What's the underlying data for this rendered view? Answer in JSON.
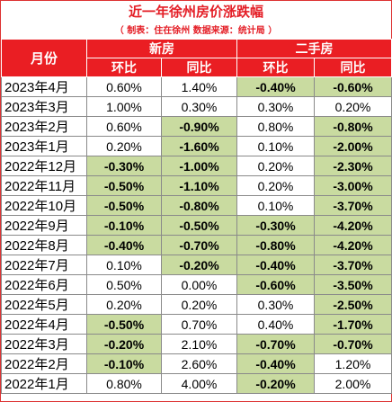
{
  "title": "近一年徐州房价涨跌幅",
  "subtitle": "（ 制表：住在徐州  数据来源：统计局 ）",
  "headers": {
    "month": "月份",
    "new_house": "新房",
    "second_hand": "二手房",
    "mom": "环比",
    "yoy": "同比"
  },
  "colors": {
    "header_bg": "#ea1e23",
    "negative_bg": "#c9dba0",
    "title": "#e41e26"
  },
  "rows": [
    {
      "month": "2023年4月",
      "new_mom": "0.60%",
      "new_yoy": "1.40%",
      "sh_mom": "-0.40%",
      "sh_yoy": "-0.60%"
    },
    {
      "month": "2023年3月",
      "new_mom": "1.00%",
      "new_yoy": "0.30%",
      "sh_mom": "0.30%",
      "sh_yoy": "0.20%"
    },
    {
      "month": "2023年2月",
      "new_mom": "0.60%",
      "new_yoy": "-0.90%",
      "sh_mom": "0.80%",
      "sh_yoy": "-0.80%"
    },
    {
      "month": "2023年1月",
      "new_mom": "0.20%",
      "new_yoy": "-1.60%",
      "sh_mom": "0.10%",
      "sh_yoy": "-2.00%"
    },
    {
      "month": "2022年12月",
      "new_mom": "-0.30%",
      "new_yoy": "-1.00%",
      "sh_mom": "0.20%",
      "sh_yoy": "-2.30%"
    },
    {
      "month": "2022年11月",
      "new_mom": "-0.50%",
      "new_yoy": "-1.10%",
      "sh_mom": "0.20%",
      "sh_yoy": "-3.00%"
    },
    {
      "month": "2022年10月",
      "new_mom": "-0.50%",
      "new_yoy": "-0.80%",
      "sh_mom": "0.10%",
      "sh_yoy": "-3.70%"
    },
    {
      "month": "2022年9月",
      "new_mom": "-0.10%",
      "new_yoy": "-0.50%",
      "sh_mom": "-0.30%",
      "sh_yoy": "-4.20%"
    },
    {
      "month": "2022年8月",
      "new_mom": "-0.40%",
      "new_yoy": "-0.70%",
      "sh_mom": "-0.80%",
      "sh_yoy": "-4.20%"
    },
    {
      "month": "2022年7月",
      "new_mom": "0.10%",
      "new_yoy": "-0.20%",
      "sh_mom": "-0.40%",
      "sh_yoy": "-3.70%"
    },
    {
      "month": "2022年6月",
      "new_mom": "0.50%",
      "new_yoy": "0.00%",
      "sh_mom": "-0.60%",
      "sh_yoy": "-3.50%"
    },
    {
      "month": "2022年5月",
      "new_mom": "0.20%",
      "new_yoy": "0.20%",
      "sh_mom": "0.30%",
      "sh_yoy": "-2.50%"
    },
    {
      "month": "2022年4月",
      "new_mom": "-0.50%",
      "new_yoy": "0.70%",
      "sh_mom": "0.40%",
      "sh_yoy": "-1.70%"
    },
    {
      "month": "2022年3月",
      "new_mom": "-0.20%",
      "new_yoy": "2.10%",
      "sh_mom": "-0.70%",
      "sh_yoy": "-0.70%"
    },
    {
      "month": "2022年2月",
      "new_mom": "-0.10%",
      "new_yoy": "2.60%",
      "sh_mom": "-0.40%",
      "sh_yoy": "1.20%"
    },
    {
      "month": "2022年1月",
      "new_mom": "0.80%",
      "new_yoy": "4.00%",
      "sh_mom": "-0.20%",
      "sh_yoy": "2.00%"
    }
  ]
}
